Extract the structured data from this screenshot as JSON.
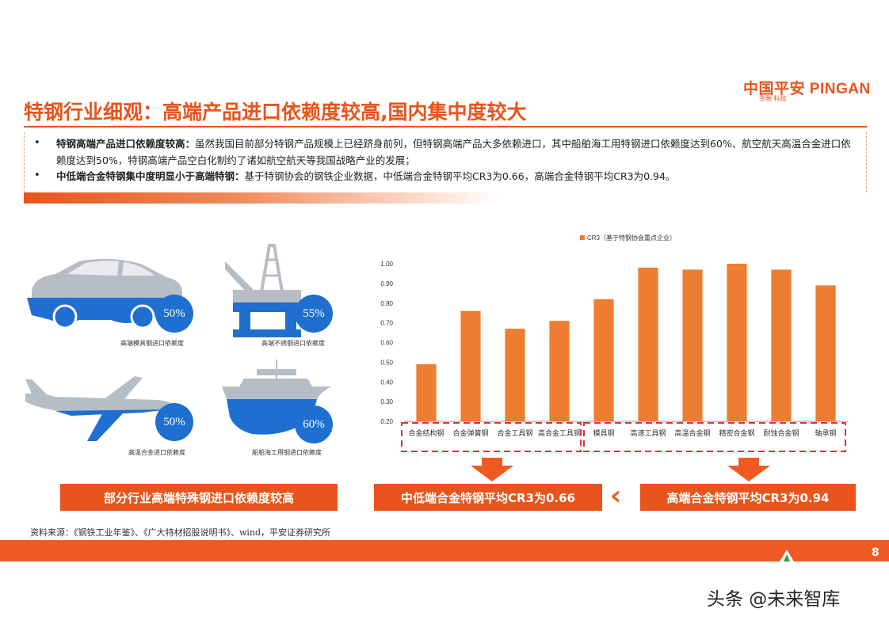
{
  "header": {
    "logo_text": "中国平安 PINGAN",
    "logo_sub": "金融·科技",
    "title": "特钢行业细观：高端产品进口依赖度较高,国内集中度较大"
  },
  "bullets": [
    {
      "bold": "特钢高端产品进口依赖度较高：",
      "text": "虽然我国目前部分特钢产品规模上已经跻身前列，但特钢高端产品大多依赖进口，其中船舶海工用特钢进口依赖度达到60%、航空航天高温合金进口依赖度达到50%，特钢高端产品空白化制约了诸如航空航天等我国战略产业的发展；"
    },
    {
      "bold": "中低端合金特钢集中度明显小于高端特钢：",
      "text": "基于特钢协会的钢铁企业数据，中低端合金特钢平均CR3为0.66，高端合金特钢平均CR3为0.94。"
    }
  ],
  "infographic": [
    {
      "pct": "50%",
      "label": "高端模具钢进口依赖度",
      "icon": "car-icon"
    },
    {
      "pct": "55%",
      "label": "高端不锈钢进口依赖度",
      "icon": "oil-rig-icon"
    },
    {
      "pct": "50%",
      "label": "高温合金进口依赖度",
      "icon": "airplane-icon"
    },
    {
      "pct": "60%",
      "label": "船舶海工用钢进口依赖度",
      "icon": "ship-icon"
    }
  ],
  "chart_data": {
    "type": "bar",
    "title": "",
    "legend": [
      "CR3（基于特钢协会重点企业）"
    ],
    "legend_position": "top",
    "categories": [
      "合金结构钢",
      "合金弹簧钢",
      "合金工具钢",
      "高合金工具钢",
      "模具钢",
      "高速工具钢",
      "高温合金钢",
      "精密合金钢",
      "耐蚀合金钢",
      "轴承钢"
    ],
    "series": [
      {
        "name": "CR3（基于特钢协会重点企业）",
        "values": [
          0.49,
          0.76,
          0.67,
          0.71,
          0.82,
          0.98,
          0.97,
          1.0,
          0.97,
          0.89
        ]
      }
    ],
    "ylim": [
      0.2,
      1.0
    ],
    "yticks": [
      "0.20",
      "0.30",
      "0.40",
      "0.50",
      "0.60",
      "0.70",
      "0.80",
      "0.90",
      "1.00"
    ],
    "grid": false,
    "bar_color": "#ed7d31"
  },
  "callouts": {
    "left": "部分行业高端特殊钢进口依赖度较高",
    "mid": "中低端合金特钢平均CR3为0.66",
    "right": "高端合金特钢平均CR3为0.94",
    "chevron": "‹"
  },
  "source": "资料来源：《钢铁工业年鉴》、《广大特材招股说明书》、wind，平安证券研究所",
  "page_number": "8",
  "watermark": "头条 @未来智库"
}
